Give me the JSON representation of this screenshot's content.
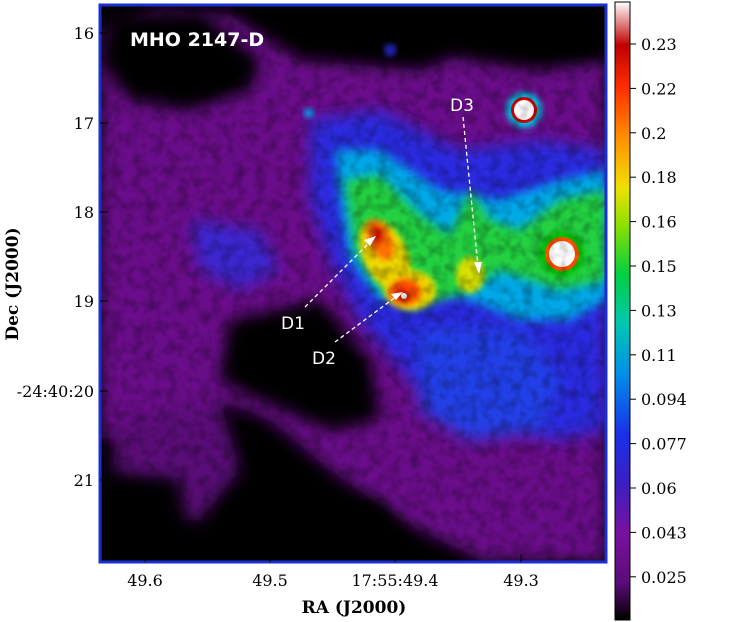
{
  "image": {
    "title": "MHO 2147-D",
    "xlabel": "RA (J2000)",
    "ylabel": "Dec (J2000)",
    "x_ticks": [
      "49.6",
      "49.5",
      "17:55:49.4",
      "49.3"
    ],
    "y_ticks": [
      "16",
      "17",
      "18",
      "19",
      "-24:40:20",
      "21"
    ],
    "annotations": [
      "D1",
      "D2",
      "D3"
    ]
  },
  "colorbar": {
    "ticks": [
      "0.23",
      "0.22",
      "0.2",
      "0.18",
      "0.16",
      "0.15",
      "0.13",
      "0.11",
      "0.094",
      "0.077",
      "0.06",
      "0.043",
      "0.025"
    ],
    "colormap": [
      "#000000",
      "#6a0a8a",
      "#2a2ae0",
      "#00b8e0",
      "#00d040",
      "#f0e000",
      "#ff6000",
      "#d00000",
      "#ffffff"
    ]
  },
  "colors": {
    "frame": "#1a2fd0",
    "background": "#000000"
  }
}
